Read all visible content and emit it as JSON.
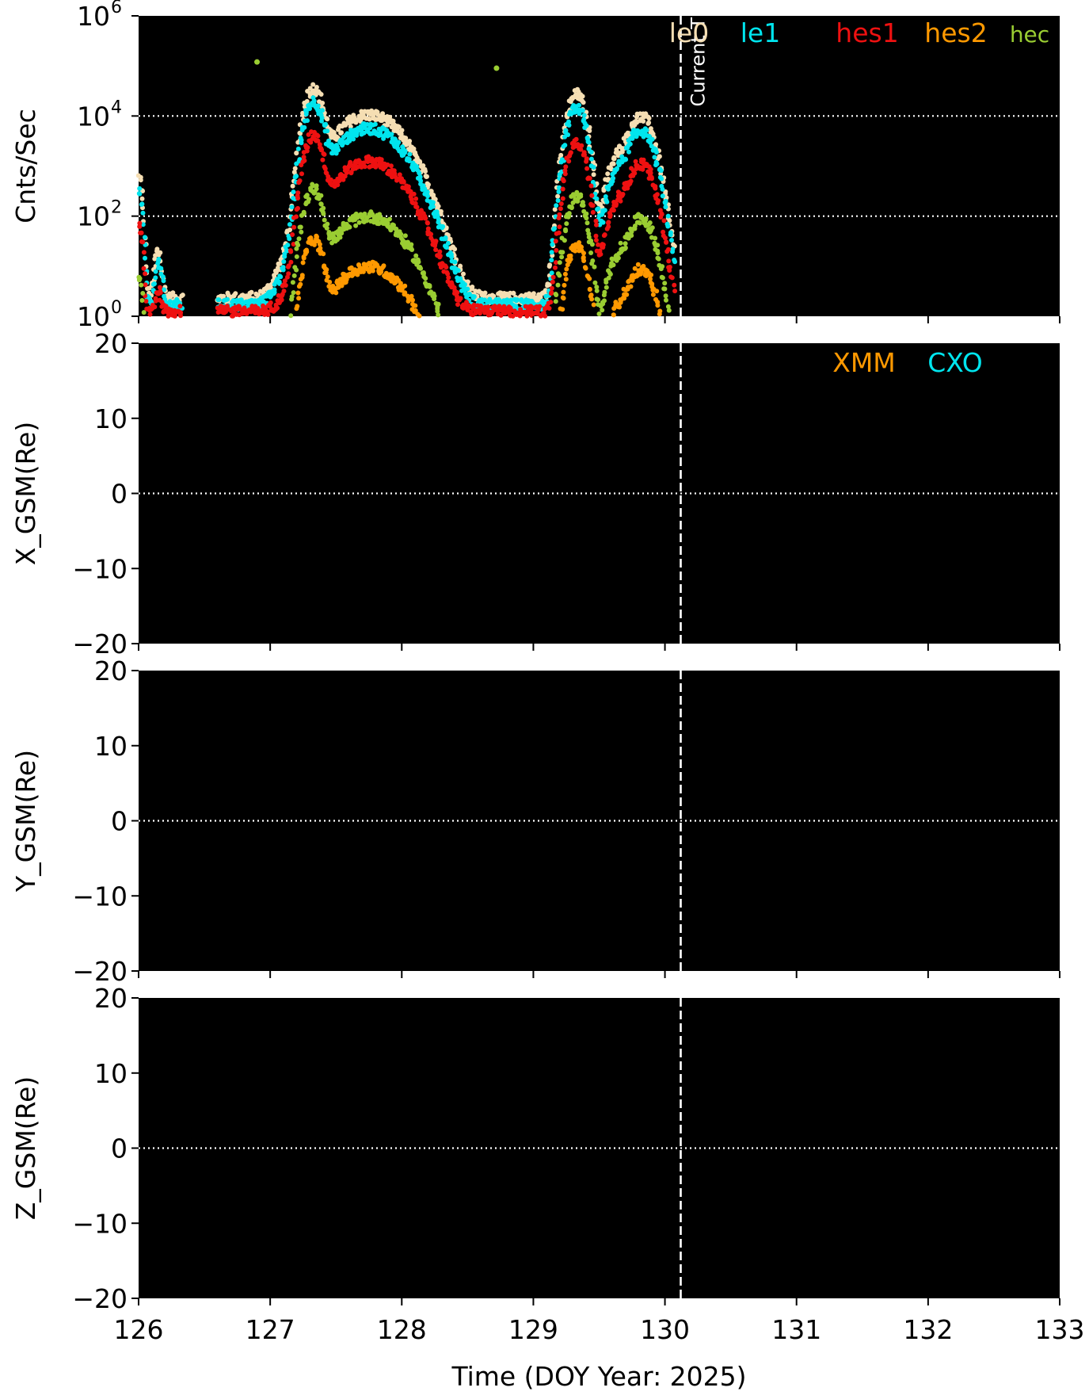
{
  "chart_data": [
    {
      "type": "scatter",
      "ylabel": "Cnts/Sec",
      "yscale": "log",
      "ylim": [
        1,
        1000000
      ],
      "xlim": [
        126,
        133
      ],
      "yticks": [
        {
          "value": 1,
          "base": "10",
          "exp": "0"
        },
        {
          "value": 100,
          "base": "10",
          "exp": "2"
        },
        {
          "value": 10000,
          "base": "10",
          "exp": "4"
        },
        {
          "value": 1000000,
          "base": "10",
          "exp": "6"
        }
      ],
      "hlines": [
        100,
        10000
      ],
      "background": "#000000",
      "current_time_label": "Current T",
      "series": [
        {
          "name": "le0",
          "color": "#f5deb3",
          "peak_factor": 3.0,
          "base": 2.3
        },
        {
          "name": "le1",
          "color": "#00e5ee",
          "peak_factor": 1.6,
          "base": 1.7
        },
        {
          "name": "hes1",
          "color": "#ee1111",
          "peak_factor": 0.35,
          "base": 1.25
        },
        {
          "name": "hes2",
          "color": "#ff9900",
          "peak_factor": 0.0028,
          "base": null
        },
        {
          "name": "hec",
          "color": "#9acd32",
          "peak_factor": 0.028,
          "base": null
        }
      ],
      "events": [
        {
          "center": 126.0,
          "peak": 200,
          "width": 0.02
        },
        {
          "center": 126.15,
          "peak": 6,
          "width": 0.02
        },
        {
          "center": 127.33,
          "peak": 12000,
          "width": 0.05
        },
        {
          "center": 127.75,
          "peak": 3500,
          "width": 0.18
        },
        {
          "center": 129.33,
          "peak": 9000,
          "width": 0.05
        },
        {
          "center": 129.65,
          "peak": 500,
          "width": 0.06
        },
        {
          "center": 129.82,
          "peak": 3200,
          "width": 0.07
        }
      ],
      "data_gaps": [
        [
          126.33,
          126.6
        ]
      ],
      "data_end": 130.07,
      "outliers": [
        {
          "x": 126.9,
          "y": 120000,
          "series": "hec"
        },
        {
          "x": 128.72,
          "y": 90000,
          "series": "hec"
        }
      ]
    },
    {
      "type": "scatter",
      "ylabel": "X_GSM(Re)",
      "ylim": [
        -20,
        20
      ],
      "yticks": [
        -20,
        -10,
        0,
        10,
        20
      ],
      "hlines": [
        0
      ],
      "legend": [
        {
          "name": "XMM",
          "color": "#ff9900"
        },
        {
          "name": "CXO",
          "color": "#00e5ee"
        }
      ]
    },
    {
      "type": "scatter",
      "ylabel": "Y_GSM(Re)",
      "ylim": [
        -20,
        20
      ],
      "yticks": [
        -20,
        -10,
        0,
        10,
        20
      ],
      "hlines": [
        0
      ]
    },
    {
      "type": "scatter",
      "ylabel": "Z_GSM(Re)",
      "ylim": [
        -20,
        20
      ],
      "yticks": [
        -20,
        -10,
        0,
        10,
        20
      ],
      "hlines": [
        0
      ]
    }
  ],
  "xaxis": {
    "label": "Time (DOY Year: 2025)",
    "range": [
      126,
      133
    ],
    "ticks": [
      126,
      127,
      128,
      129,
      130,
      131,
      132,
      133
    ]
  },
  "current_time": 130.12
}
